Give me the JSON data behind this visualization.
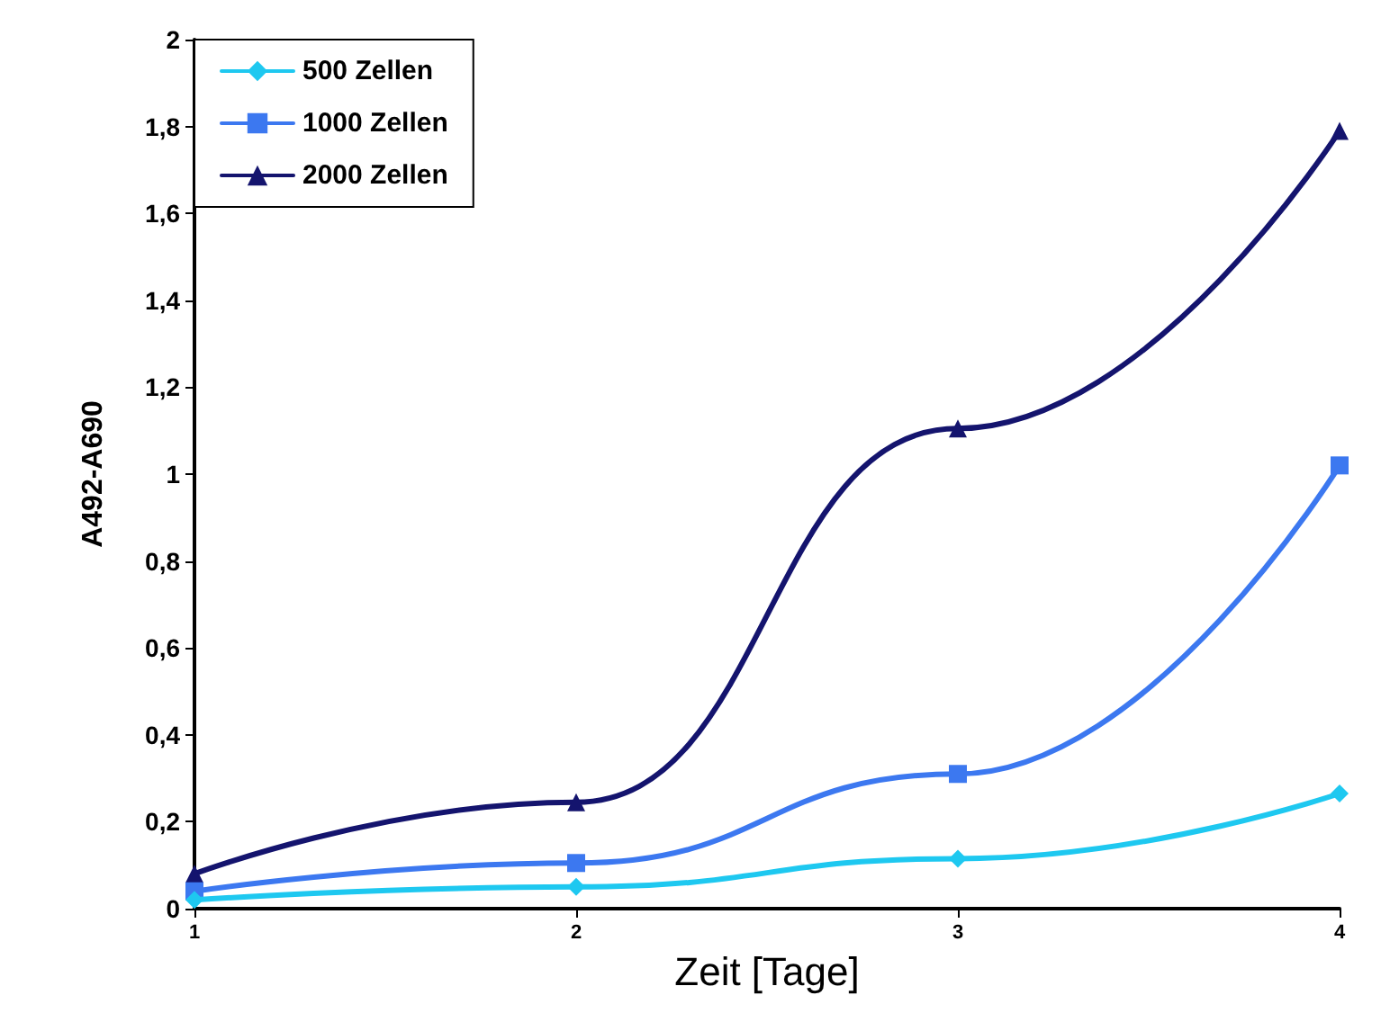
{
  "chart_data": {
    "type": "line",
    "xlabel": "Zeit [Tage]",
    "ylabel": "A492-A690",
    "x": [
      1,
      2,
      3,
      4
    ],
    "series": [
      {
        "name": "500 Zellen",
        "color": "#1ec8f0",
        "marker": "diamond",
        "values": [
          0.02,
          0.05,
          0.115,
          0.265
        ]
      },
      {
        "name": "1000 Zellen",
        "color": "#3c78f0",
        "marker": "square",
        "values": [
          0.04,
          0.105,
          0.31,
          1.02
        ]
      },
      {
        "name": "2000 Zellen",
        "color": "#14146e",
        "marker": "triangle",
        "values": [
          0.08,
          0.245,
          1.105,
          1.79
        ]
      }
    ],
    "xlim": [
      1,
      4
    ],
    "xticks": [
      1,
      2,
      3,
      4
    ],
    "ylim": [
      0,
      2
    ],
    "yticks": [
      0,
      {
        "value": 0.2,
        "label": "0,2"
      },
      {
        "value": 0.4,
        "label": "0,4"
      },
      {
        "value": 0.6,
        "label": "0,6"
      },
      {
        "value": 0.8,
        "label": "0,8"
      },
      1,
      {
        "value": 1.2,
        "label": "1,2"
      },
      {
        "value": 1.4,
        "label": "1,4"
      },
      {
        "value": 1.6,
        "label": "1,6"
      },
      {
        "value": 1.8,
        "label": "1,8"
      },
      2
    ],
    "grid": false,
    "legend": "top left",
    "line_style": "solid"
  }
}
